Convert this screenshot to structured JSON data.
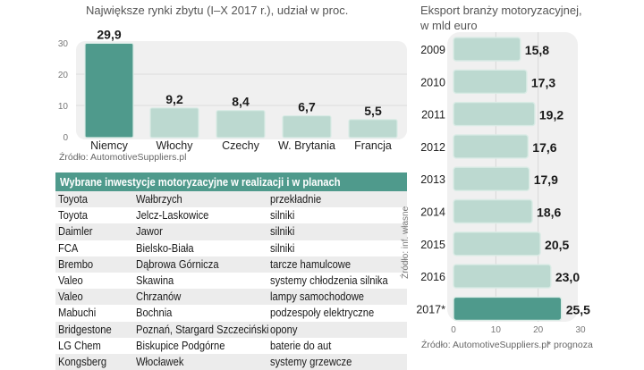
{
  "chart_data": [
    {
      "type": "bar",
      "title": "Największe rynki zbytu (I–X 2017 r.), udział w proc.",
      "categories": [
        "Niemcy",
        "Włochy",
        "Czechy",
        "W. Brytania",
        "Francja"
      ],
      "values": [
        29.9,
        9.2,
        8.4,
        6.7,
        5.5
      ],
      "value_labels": [
        "29,9",
        "9,2",
        "8,4",
        "6,7",
        "5,5"
      ],
      "highlight_index": 0,
      "yticks": [
        "0",
        "10",
        "20",
        "30"
      ],
      "ylim": [
        0,
        30
      ],
      "xlabel": "",
      "ylabel": "",
      "grid": true,
      "source": "Źródło: AutomotiveSuppliers.pl"
    },
    {
      "type": "bar",
      "orientation": "horizontal",
      "title": "Eksport branży motoryzacyjnej, w mld euro",
      "title_lines": [
        "Eksport branży motoryzacyjnej,",
        "w mld euro"
      ],
      "categories": [
        "2009",
        "2010",
        "2011",
        "2012",
        "2013",
        "2014",
        "2015",
        "2016",
        "2017*"
      ],
      "values": [
        15.8,
        17.3,
        19.2,
        17.6,
        17.9,
        18.6,
        20.5,
        23.0,
        25.5
      ],
      "value_labels": [
        "15,8",
        "17,3",
        "19,2",
        "17,6",
        "17,9",
        "18,6",
        "20,5",
        "23,0",
        "25,5"
      ],
      "highlight_index": 8,
      "xticks": [
        "0",
        "10",
        "20",
        "30"
      ],
      "xlim": [
        0,
        30
      ],
      "grid": true,
      "source": "Źródło: AutomotiveSuppliers.pl",
      "footnote": "* prognoza"
    }
  ],
  "colors": {
    "highlight": "#4f9a8c",
    "bar": "#bcd9d0",
    "bar_border": "#d9ebe5",
    "panel": "#f0f0f0",
    "header": "#4f9a8c"
  },
  "table": {
    "title": "Wybrane inwestycje motoryzacyjne w realizacji i w planach",
    "rows": [
      [
        "Toyota",
        "Wałbrzych",
        "przekładnie"
      ],
      [
        "Toyota",
        "Jelcz-Laskowice",
        "silniki"
      ],
      [
        "Daimler",
        "Jawor",
        "silniki"
      ],
      [
        "FCA",
        "Bielsko-Biała",
        "silniki"
      ],
      [
        "Brembo",
        "Dąbrowa Górnicza",
        "tarcze hamulcowe"
      ],
      [
        "Valeo",
        "Skawina",
        "systemy chłodzenia silnika"
      ],
      [
        "Valeo",
        "Chrzanów",
        "lampy samochodowe"
      ],
      [
        "Mabuchi",
        "Bochnia",
        "podzespoły elektryczne"
      ],
      [
        "Bridgestone",
        "Poznań, Stargard Szczeciński",
        "opony"
      ],
      [
        "LG Chem",
        "Biskupice Podgórne",
        "baterie do aut"
      ],
      [
        "Kongsberg",
        "Włocławek",
        "systemy grzewcze"
      ]
    ],
    "source": "Źródło: inf. własne"
  }
}
